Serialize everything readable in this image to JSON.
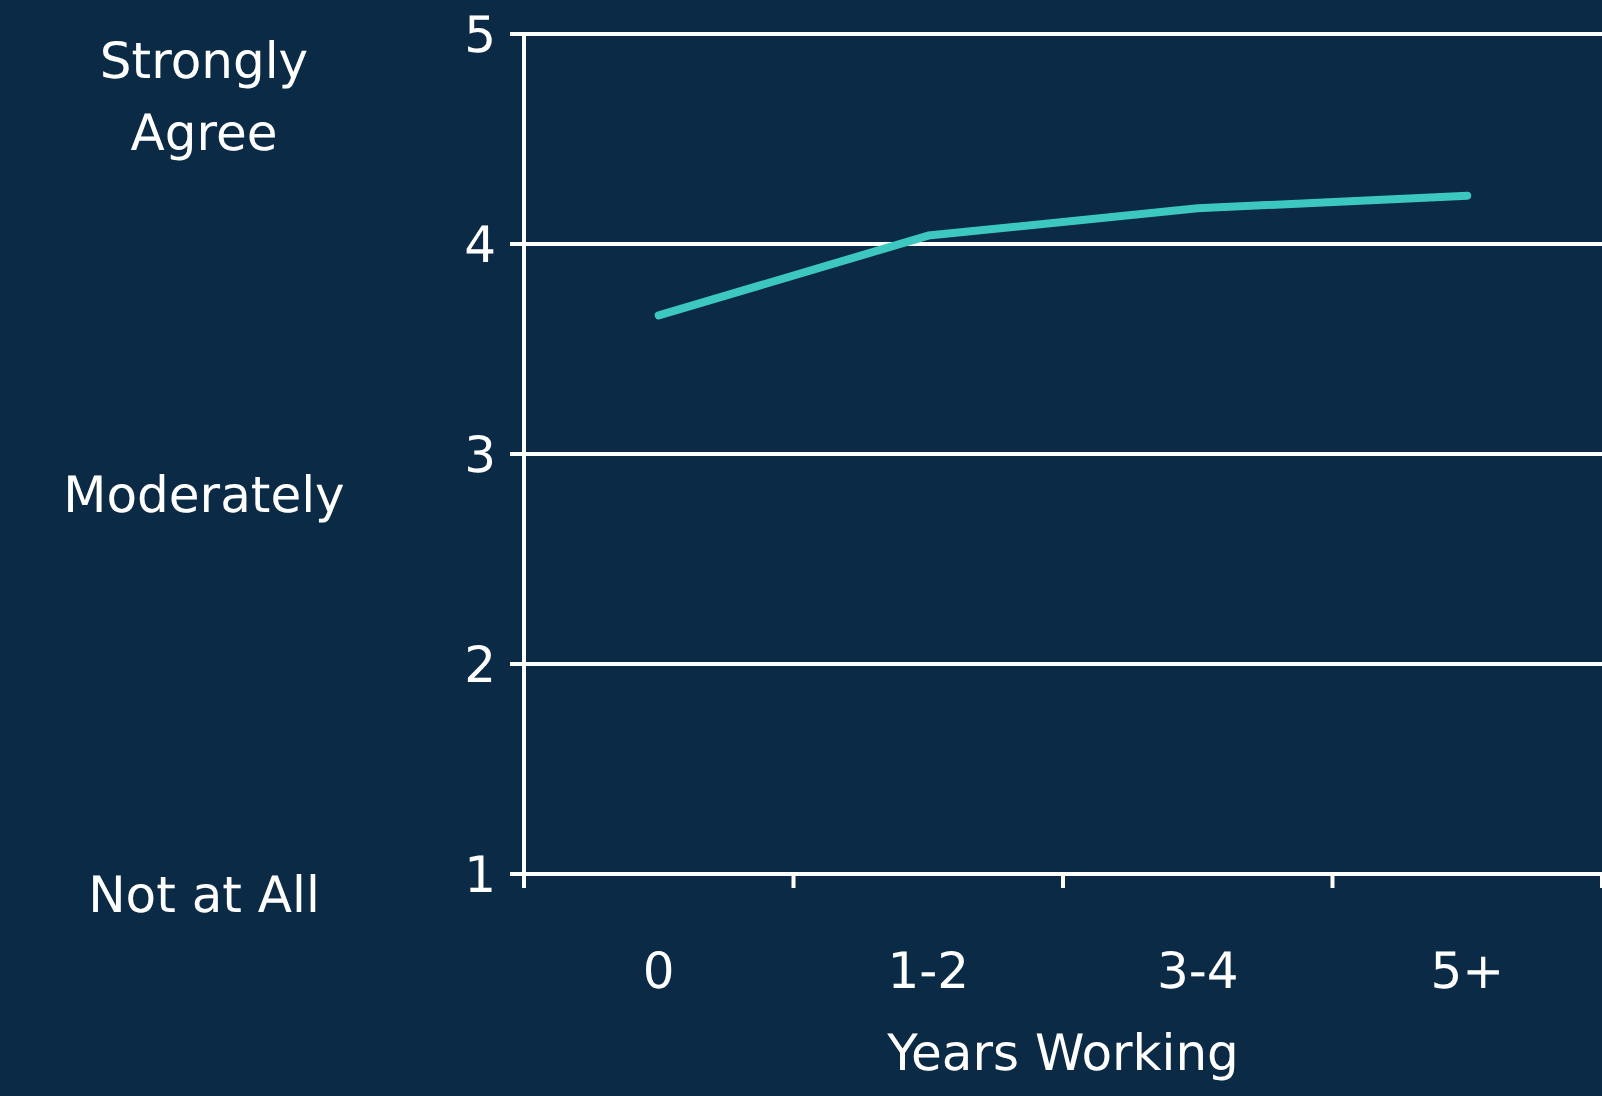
{
  "chart_data": {
    "type": "line",
    "xlabel": "Years Working",
    "categories": [
      "0",
      "1-2",
      "3-4",
      "5+"
    ],
    "series": [
      {
        "color": "#3cc8c0",
        "values": [
          3.66,
          4.04,
          4.17,
          4.23
        ]
      }
    ],
    "ylim": [
      1,
      5
    ],
    "yticks": [
      1,
      2,
      3,
      4,
      5
    ],
    "grid": "y",
    "marker": "none",
    "line_style": "solid",
    "annotations": [
      "Strongly Agree",
      "Moderately",
      "Not at All"
    ]
  }
}
